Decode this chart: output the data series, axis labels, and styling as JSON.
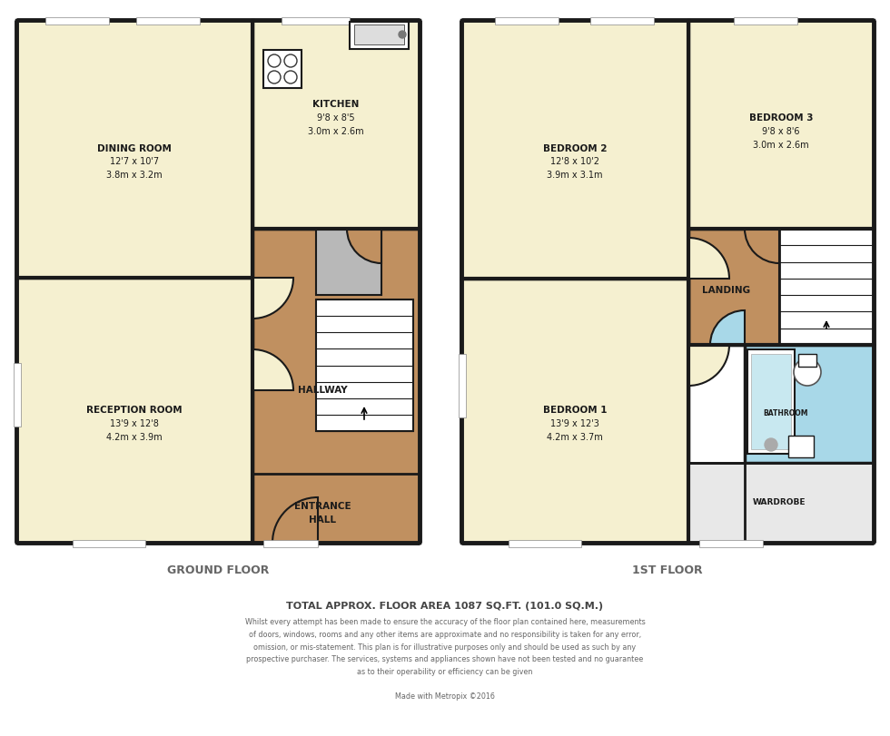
{
  "bg_color": "#ffffff",
  "wall_color": "#1a1a1a",
  "room_yellow": "#f5f0d0",
  "room_tan": "#c09060",
  "room_blue": "#a8d8e8",
  "room_white": "#ffffff",
  "room_gray": "#b8b8b8",
  "footer_title": "TOTAL APPROX. FLOOR AREA 1087 SQ.FT. (101.0 SQ.M.)",
  "footer_body": "Whilst every attempt has been made to ensure the accuracy of the floor plan contained here, measurements\nof doors, windows, rooms and any other items are approximate and no responsibility is taken for any error,\nomission, or mis-statement. This plan is for illustrative purposes only and should be used as such by any\nprospective purchaser. The services, systems and appliances shown have not been tested and no guarantee\nas to their operability or efficiency can be given",
  "footer_made": "Made with Metropix ©2016"
}
